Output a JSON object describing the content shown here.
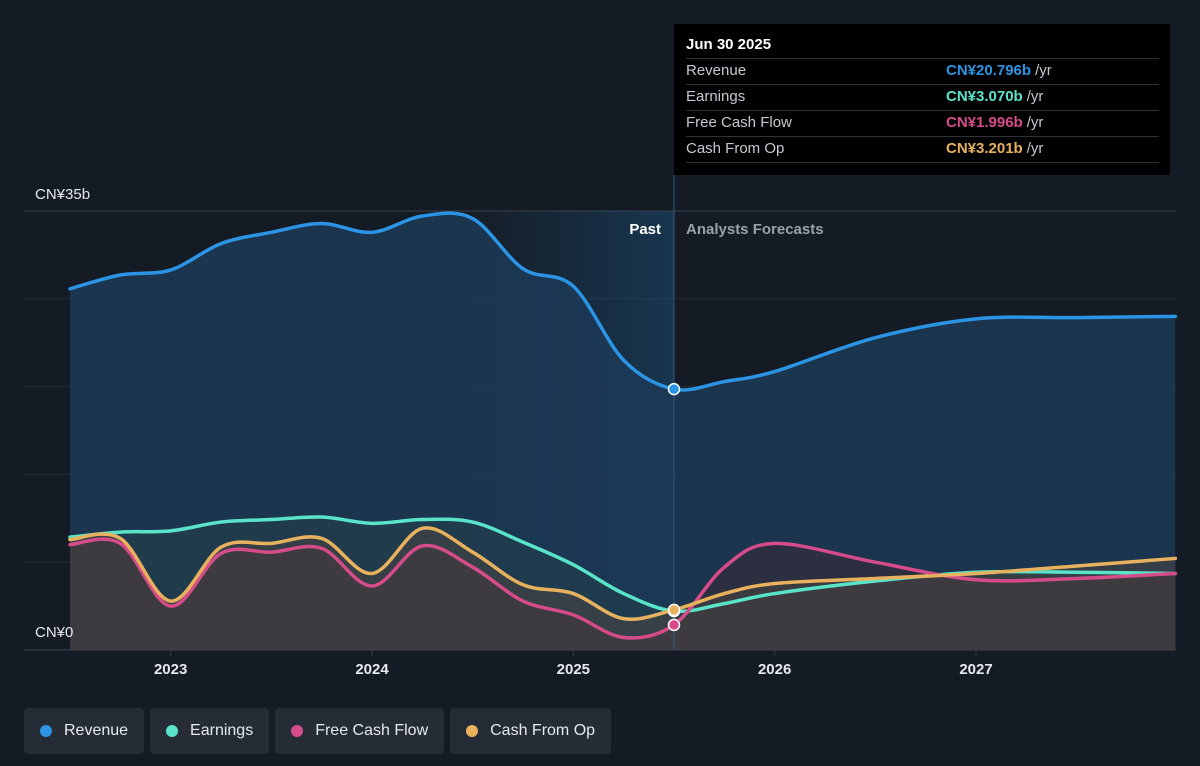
{
  "chart_data": {
    "type": "line",
    "x_start": 2022.5,
    "x_end": 2027.99,
    "past_end": 2025.5,
    "highlight_start": 2024.5,
    "ylim": [
      0,
      35
    ],
    "y_tick_labels": {
      "top": "CN¥35b",
      "bottom": "CN¥0"
    },
    "x_tick_labels": [
      "2023",
      "2024",
      "2025",
      "2026",
      "2027"
    ],
    "x_tick_values": [
      2023,
      2024,
      2025,
      2026,
      2027
    ],
    "past_label": "Past",
    "forecast_label": "Analysts Forecasts",
    "series": [
      {
        "name": "Revenue",
        "color": "#2b94e5",
        "points": [
          [
            2022.5,
            28.8
          ],
          [
            2022.75,
            29.9
          ],
          [
            2023.0,
            30.3
          ],
          [
            2023.25,
            32.4
          ],
          [
            2023.5,
            33.3
          ],
          [
            2023.75,
            34.0
          ],
          [
            2024.0,
            33.3
          ],
          [
            2024.25,
            34.6
          ],
          [
            2024.5,
            34.4
          ],
          [
            2024.75,
            30.4
          ],
          [
            2025.0,
            29.0
          ],
          [
            2025.25,
            23.1
          ],
          [
            2025.5,
            20.8
          ],
          [
            2025.75,
            21.4
          ],
          [
            2026.0,
            22.2
          ],
          [
            2026.5,
            24.9
          ],
          [
            2027.0,
            26.4
          ],
          [
            2027.5,
            26.5
          ],
          [
            2027.99,
            26.6
          ]
        ]
      },
      {
        "name": "Earnings",
        "color": "#59e4c9",
        "points": [
          [
            2022.5,
            9.0
          ],
          [
            2022.75,
            9.4
          ],
          [
            2023.0,
            9.5
          ],
          [
            2023.25,
            10.2
          ],
          [
            2023.5,
            10.4
          ],
          [
            2023.75,
            10.6
          ],
          [
            2024.0,
            10.1
          ],
          [
            2024.25,
            10.4
          ],
          [
            2024.5,
            10.2
          ],
          [
            2024.75,
            8.6
          ],
          [
            2025.0,
            6.8
          ],
          [
            2025.25,
            4.5
          ],
          [
            2025.5,
            3.1
          ],
          [
            2025.75,
            3.7
          ],
          [
            2026.0,
            4.5
          ],
          [
            2026.5,
            5.5
          ],
          [
            2027.0,
            6.2
          ],
          [
            2027.5,
            6.2
          ],
          [
            2027.99,
            6.1
          ]
        ]
      },
      {
        "name": "Free Cash Flow",
        "color": "#d64b8a",
        "points": [
          [
            2022.5,
            8.4
          ],
          [
            2022.75,
            8.5
          ],
          [
            2023.0,
            3.5
          ],
          [
            2023.25,
            7.7
          ],
          [
            2023.5,
            7.8
          ],
          [
            2023.75,
            8.1
          ],
          [
            2024.0,
            5.1
          ],
          [
            2024.25,
            8.3
          ],
          [
            2024.5,
            6.6
          ],
          [
            2024.75,
            3.9
          ],
          [
            2025.0,
            2.8
          ],
          [
            2025.25,
            1.0
          ],
          [
            2025.5,
            2.0
          ],
          [
            2025.75,
            6.6
          ],
          [
            2026.0,
            8.5
          ],
          [
            2026.5,
            7.0
          ],
          [
            2027.0,
            5.6
          ],
          [
            2027.5,
            5.7
          ],
          [
            2027.99,
            6.1
          ]
        ]
      },
      {
        "name": "Cash From Op",
        "color": "#e8b15e",
        "points": [
          [
            2022.5,
            8.8
          ],
          [
            2022.75,
            8.9
          ],
          [
            2023.0,
            3.9
          ],
          [
            2023.25,
            8.2
          ],
          [
            2023.5,
            8.5
          ],
          [
            2023.75,
            8.9
          ],
          [
            2024.0,
            6.1
          ],
          [
            2024.25,
            9.7
          ],
          [
            2024.5,
            7.8
          ],
          [
            2024.75,
            5.2
          ],
          [
            2025.0,
            4.5
          ],
          [
            2025.25,
            2.5
          ],
          [
            2025.5,
            3.2
          ],
          [
            2025.75,
            4.5
          ],
          [
            2026.0,
            5.3
          ],
          [
            2026.5,
            5.7
          ],
          [
            2027.0,
            6.1
          ],
          [
            2027.5,
            6.7
          ],
          [
            2027.99,
            7.3
          ]
        ]
      }
    ]
  },
  "tooltip": {
    "date": "Jun 30 2025",
    "rows": [
      {
        "label": "Revenue",
        "value": "CN¥20.796b",
        "unit": "/yr",
        "color": "#2b94e5"
      },
      {
        "label": "Earnings",
        "value": "CN¥3.070b",
        "unit": "/yr",
        "color": "#59e4c9"
      },
      {
        "label": "Free Cash Flow",
        "value": "CN¥1.996b",
        "unit": "/yr",
        "color": "#d64b8a"
      },
      {
        "label": "Cash From Op",
        "value": "CN¥3.201b",
        "unit": "/yr",
        "color": "#e8b15e"
      }
    ]
  },
  "legend": [
    {
      "label": "Revenue",
      "color": "#2b94e5"
    },
    {
      "label": "Earnings",
      "color": "#59e4c9"
    },
    {
      "label": "Free Cash Flow",
      "color": "#d64b8a"
    },
    {
      "label": "Cash From Op",
      "color": "#e8b15e"
    }
  ]
}
